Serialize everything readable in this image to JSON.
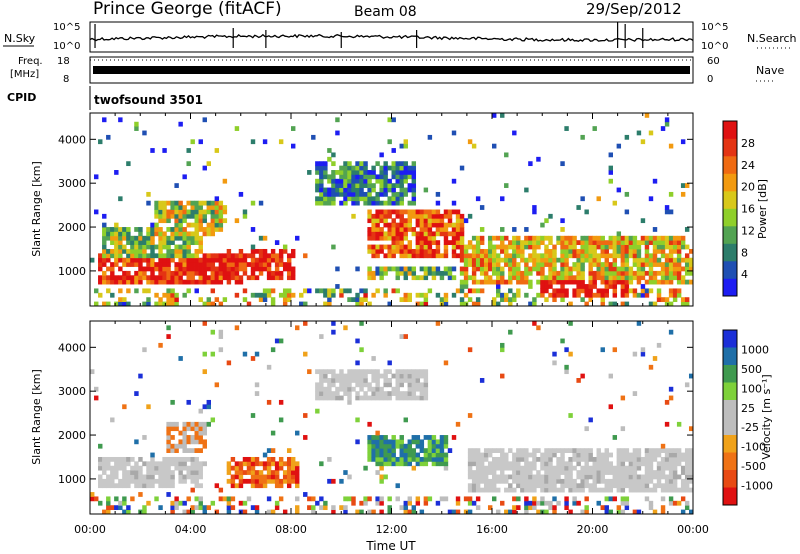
{
  "header": {
    "title": "Prince George (fitACF)",
    "beam": "Beam 08",
    "date": "29/Sep/2012"
  },
  "top_panels": {
    "nsky_label": "N.Sky",
    "nsky_ticks": [
      "10^5",
      "10^0"
    ],
    "nsearch_label": "N.Search",
    "nsearch_ticks": [
      "10^5",
      "10^0"
    ],
    "freq_label_line1": "Freq.",
    "freq_label_line2": "[MHz]",
    "freq_ticks": [
      "18",
      "8"
    ],
    "nave_label": "Nave",
    "nave_ticks": [
      "60",
      "0"
    ],
    "cpid_label": "CPID",
    "cpid_value": "twofsound 3501"
  },
  "chart_data": [
    {
      "type": "heatmap",
      "name": "power",
      "ylabel": "Slant Range [km]",
      "yticks": [
        "1000",
        "2000",
        "3000",
        "4000"
      ],
      "ylim": [
        200,
        4600
      ],
      "xlim": [
        0,
        24
      ],
      "colorbar": {
        "label": "Power [dB]",
        "ticks": [
          "4",
          "8",
          "12",
          "16",
          "20",
          "24",
          "28"
        ],
        "colors": [
          "#1d1df2",
          "#1f4fb3",
          "#2c7d6b",
          "#52a352",
          "#8fcf2a",
          "#d8c81a",
          "#f29a10",
          "#ef6a12",
          "#e43413",
          "#df1111"
        ]
      },
      "regions": [
        {
          "x": [
            0.3,
            6.0
          ],
          "y": [
            700,
            1350
          ],
          "level": 0.9
        },
        {
          "x": [
            0.5,
            4.5
          ],
          "y": [
            1350,
            2000
          ],
          "level": 0.45
        },
        {
          "x": [
            2.5,
            5.5
          ],
          "y": [
            1800,
            2600
          ],
          "level": 0.5
        },
        {
          "x": [
            5.5,
            8.2
          ],
          "y": [
            850,
            1500
          ],
          "level": 0.95
        },
        {
          "x": [
            9.0,
            13.0
          ],
          "y": [
            2500,
            3500
          ],
          "level": 0.25
        },
        {
          "x": [
            11.0,
            14.8
          ],
          "y": [
            1300,
            2400
          ],
          "level": 0.8
        },
        {
          "x": [
            11.0,
            14.5
          ],
          "y": [
            800,
            1100
          ],
          "level": 0.4
        },
        {
          "x": [
            14.8,
            24.0
          ],
          "y": [
            700,
            1800
          ],
          "level": 0.6
        },
        {
          "x": [
            18.0,
            21.5
          ],
          "y": [
            400,
            800
          ],
          "level": 0.95
        }
      ]
    },
    {
      "type": "heatmap",
      "name": "velocity",
      "ylabel": "Slant Range [km]",
      "yticks": [
        "1000",
        "2000",
        "3000",
        "4000"
      ],
      "ylim": [
        200,
        4600
      ],
      "xlim": [
        0,
        24
      ],
      "xticks": [
        "00:00",
        "04:00",
        "08:00",
        "12:00",
        "16:00",
        "20:00",
        "00:00"
      ],
      "xlabel": "Time UT",
      "colorbar": {
        "label": "Velocity [m s⁻¹]",
        "ticks": [
          "1000",
          "500",
          "100",
          "25",
          "-25",
          "-100",
          "-500",
          "-1000"
        ],
        "colors": [
          "#1b2fd8",
          "#1f6fa8",
          "#3f9a4f",
          "#7ed13a",
          "#bdbdbd",
          "#bdbdbd",
          "#f0a21a",
          "#ef7215",
          "#e84a13",
          "#e01111"
        ]
      },
      "regions": [
        {
          "x": [
            0.3,
            4.5
          ],
          "y": [
            800,
            1500
          ],
          "kind": "ground"
        },
        {
          "x": [
            15.0,
            24.0
          ],
          "y": [
            700,
            1700
          ],
          "kind": "ground"
        },
        {
          "x": [
            3.0,
            4.6
          ],
          "y": [
            1600,
            2300
          ],
          "kind": "toward_slow"
        },
        {
          "x": [
            5.5,
            8.3
          ],
          "y": [
            850,
            1500
          ],
          "kind": "away"
        },
        {
          "x": [
            9.0,
            13.5
          ],
          "y": [
            2800,
            3500
          ],
          "kind": "ground"
        },
        {
          "x": [
            11.0,
            14.3
          ],
          "y": [
            1300,
            2000
          ],
          "kind": "toward"
        }
      ]
    }
  ]
}
